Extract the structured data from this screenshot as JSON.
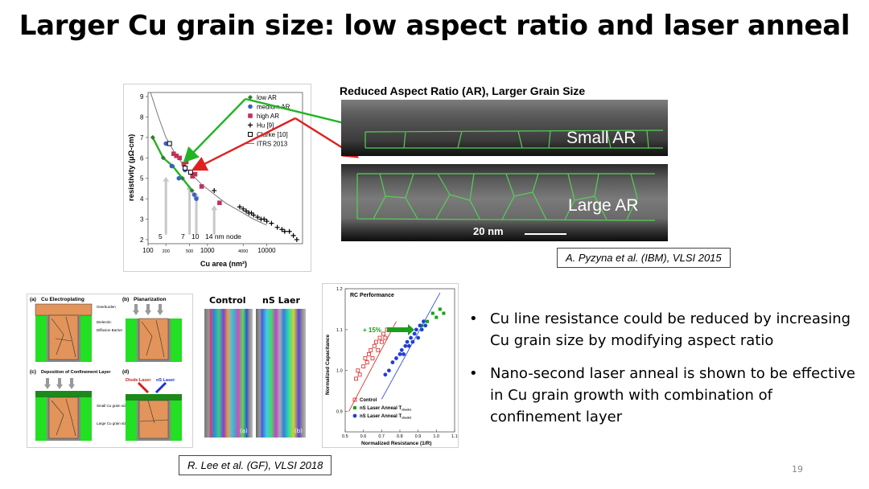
{
  "slide": {
    "title": "Larger Cu grain size: low aspect ratio and laser anneal",
    "page_number": "19"
  },
  "resistivity_chart": {
    "type": "scatter",
    "xlabel": "Cu area (nm²)",
    "ylabel": "resistivity (µΩ-cm)",
    "x_ticks": [
      "100",
      "200",
      "500",
      "1000",
      "4000",
      "10000"
    ],
    "y_ticks": [
      "2",
      "3",
      "4",
      "5",
      "6",
      "7",
      "8",
      "9"
    ],
    "xlim": [
      100,
      40000
    ],
    "ylim": [
      1.8,
      9.2
    ],
    "x_scale": "log",
    "legend": [
      "low AR",
      "medium AR",
      "high AR",
      "Hu [9]",
      "Clarke [10]",
      "ITRS 2013"
    ],
    "node_labels": [
      "5",
      "7",
      "10",
      "14 nm node"
    ],
    "series": [
      {
        "name": "low AR",
        "color": "#2f7d2f",
        "x": [
          120,
          180,
          260,
          380,
          550
        ],
        "y": [
          7.0,
          6.0,
          5.6,
          5.0,
          4.4
        ]
      },
      {
        "name": "medium AR",
        "color": "#3a5fcd",
        "x": [
          200,
          250,
          330,
          420,
          600,
          650
        ],
        "y": [
          6.7,
          5.6,
          5.0,
          5.4,
          4.2,
          4.0
        ]
      },
      {
        "name": "high AR",
        "color": "#c0325a",
        "x": [
          270,
          300,
          340,
          400,
          440,
          520,
          560,
          620,
          800,
          1600
        ],
        "y": [
          6.2,
          6.1,
          6.0,
          5.7,
          5.8,
          5.3,
          5.1,
          5.2,
          4.6,
          3.8
        ]
      },
      {
        "name": "Hu [9]",
        "color": "#000000",
        "x": [
          1300,
          3500,
          4000,
          4500,
          5000,
          5500,
          6000,
          7000,
          8000,
          9000,
          10000,
          12000,
          15000,
          18000,
          20000,
          24000,
          28000,
          32000
        ],
        "y": [
          4.4,
          3.6,
          3.5,
          3.4,
          3.3,
          3.3,
          3.2,
          3.1,
          3.0,
          3.0,
          2.9,
          2.8,
          2.6,
          2.5,
          2.4,
          2.4,
          2.2,
          2.0
        ]
      },
      {
        "name": "Clarke [10]",
        "color": "#000000",
        "x": [
          230,
          420,
          520
        ],
        "y": [
          6.7,
          5.5,
          5.3
        ]
      },
      {
        "name": "ITRS 2013",
        "color": "#888888",
        "x": [
          110,
          150,
          200,
          300,
          500,
          800,
          1200,
          2000,
          3500,
          6000,
          10000
        ],
        "y": [
          9.2,
          8.0,
          7.0,
          6.1,
          5.3,
          4.7,
          4.3,
          3.8,
          3.4,
          3.0,
          2.7
        ]
      }
    ]
  },
  "tem_panel": {
    "title": "Reduced Aspect Ratio (AR), Larger Grain Size",
    "label_small": "Small AR",
    "label_large": "Large AR",
    "scale_bar": "20 nm",
    "citation": "A. Pyzyna et al. (IBM),  VLSI 2015"
  },
  "process_panel": {
    "a": "(a)",
    "a_title": "Cu Electroplating",
    "b": "(b)",
    "b_title": "Planarization",
    "c": "(c)",
    "c_title": "Deposition of Confinement Layer",
    "d": "(d)",
    "d_title1": "Diode Laser",
    "d_title2": "nS Laser",
    "lbl_overburden": "Overburden",
    "lbl_dielectric": "Dielectric",
    "lbl_barrier": "Diffusion Barrier",
    "lbl_small": "Small Cu grain size",
    "lbl_large": "Large Cu grain size"
  },
  "ebsd_panel": {
    "control": "Control",
    "laser": "nS Laer",
    "a": "(a)",
    "b": "(b)"
  },
  "rc_chart": {
    "type": "scatter",
    "title": "RC Performance",
    "xlabel": "Normalized Resistance (1/R)",
    "ylabel": "Normalized Capacitance",
    "x_ticks": [
      "0.5",
      "0.6",
      "0.7",
      "0.8",
      "0.9",
      "1.0",
      "1.1"
    ],
    "y_ticks": [
      "0.9",
      "1.0",
      "1.1",
      "1.2"
    ],
    "xlim": [
      0.5,
      1.1
    ],
    "ylim": [
      0.85,
      1.2
    ],
    "annotation": "+ 15%",
    "legend": [
      "Control",
      "nS Laser Anneal T",
      "nS Laser Anneal T"
    ],
    "legend_sub": [
      "chuck1",
      "chuck2"
    ],
    "series": [
      {
        "name": "Control",
        "color": "#d62020",
        "x": [
          0.56,
          0.57,
          0.58,
          0.6,
          0.61,
          0.62,
          0.63,
          0.64,
          0.65,
          0.66,
          0.67,
          0.68,
          0.69,
          0.7,
          0.71,
          0.72,
          0.73
        ],
        "y": [
          0.98,
          1.0,
          0.99,
          1.01,
          1.03,
          1.02,
          1.04,
          1.05,
          1.03,
          1.06,
          1.07,
          1.05,
          1.08,
          1.07,
          1.09,
          1.08,
          1.1
        ]
      },
      {
        "name": "nS Laser Anneal Tchuck1",
        "color": "#1aa01a",
        "x": [
          0.92,
          0.95,
          0.98,
          1.0,
          1.02,
          1.04
        ],
        "y": [
          1.11,
          1.12,
          1.14,
          1.13,
          1.15,
          1.14
        ]
      },
      {
        "name": "nS Laser Anneal Tchuck2",
        "color": "#1f3fd8",
        "x": [
          0.72,
          0.74,
          0.76,
          0.78,
          0.8,
          0.81,
          0.82,
          0.83,
          0.84,
          0.85,
          0.86,
          0.87,
          0.88,
          0.89,
          0.9,
          0.91,
          0.92,
          0.93,
          0.94
        ],
        "y": [
          0.99,
          1.0,
          1.02,
          1.03,
          1.04,
          1.05,
          1.04,
          1.06,
          1.07,
          1.06,
          1.08,
          1.07,
          1.09,
          1.1,
          1.08,
          1.11,
          1.1,
          1.12,
          1.11
        ]
      }
    ],
    "citation": "R. Lee et al. (GF),  VLSI 2018"
  },
  "bullets": [
    "Cu line resistance could be reduced by increasing Cu grain size by modifying aspect ratio",
    "Nano-second laser anneal is shown to be effective in Cu grain growth with combination of confinement layer"
  ],
  "colors": {
    "green_arrow": "#22b422",
    "red_arrow": "#e02020",
    "process_green": "#22e022",
    "copper": "#e2945a"
  }
}
